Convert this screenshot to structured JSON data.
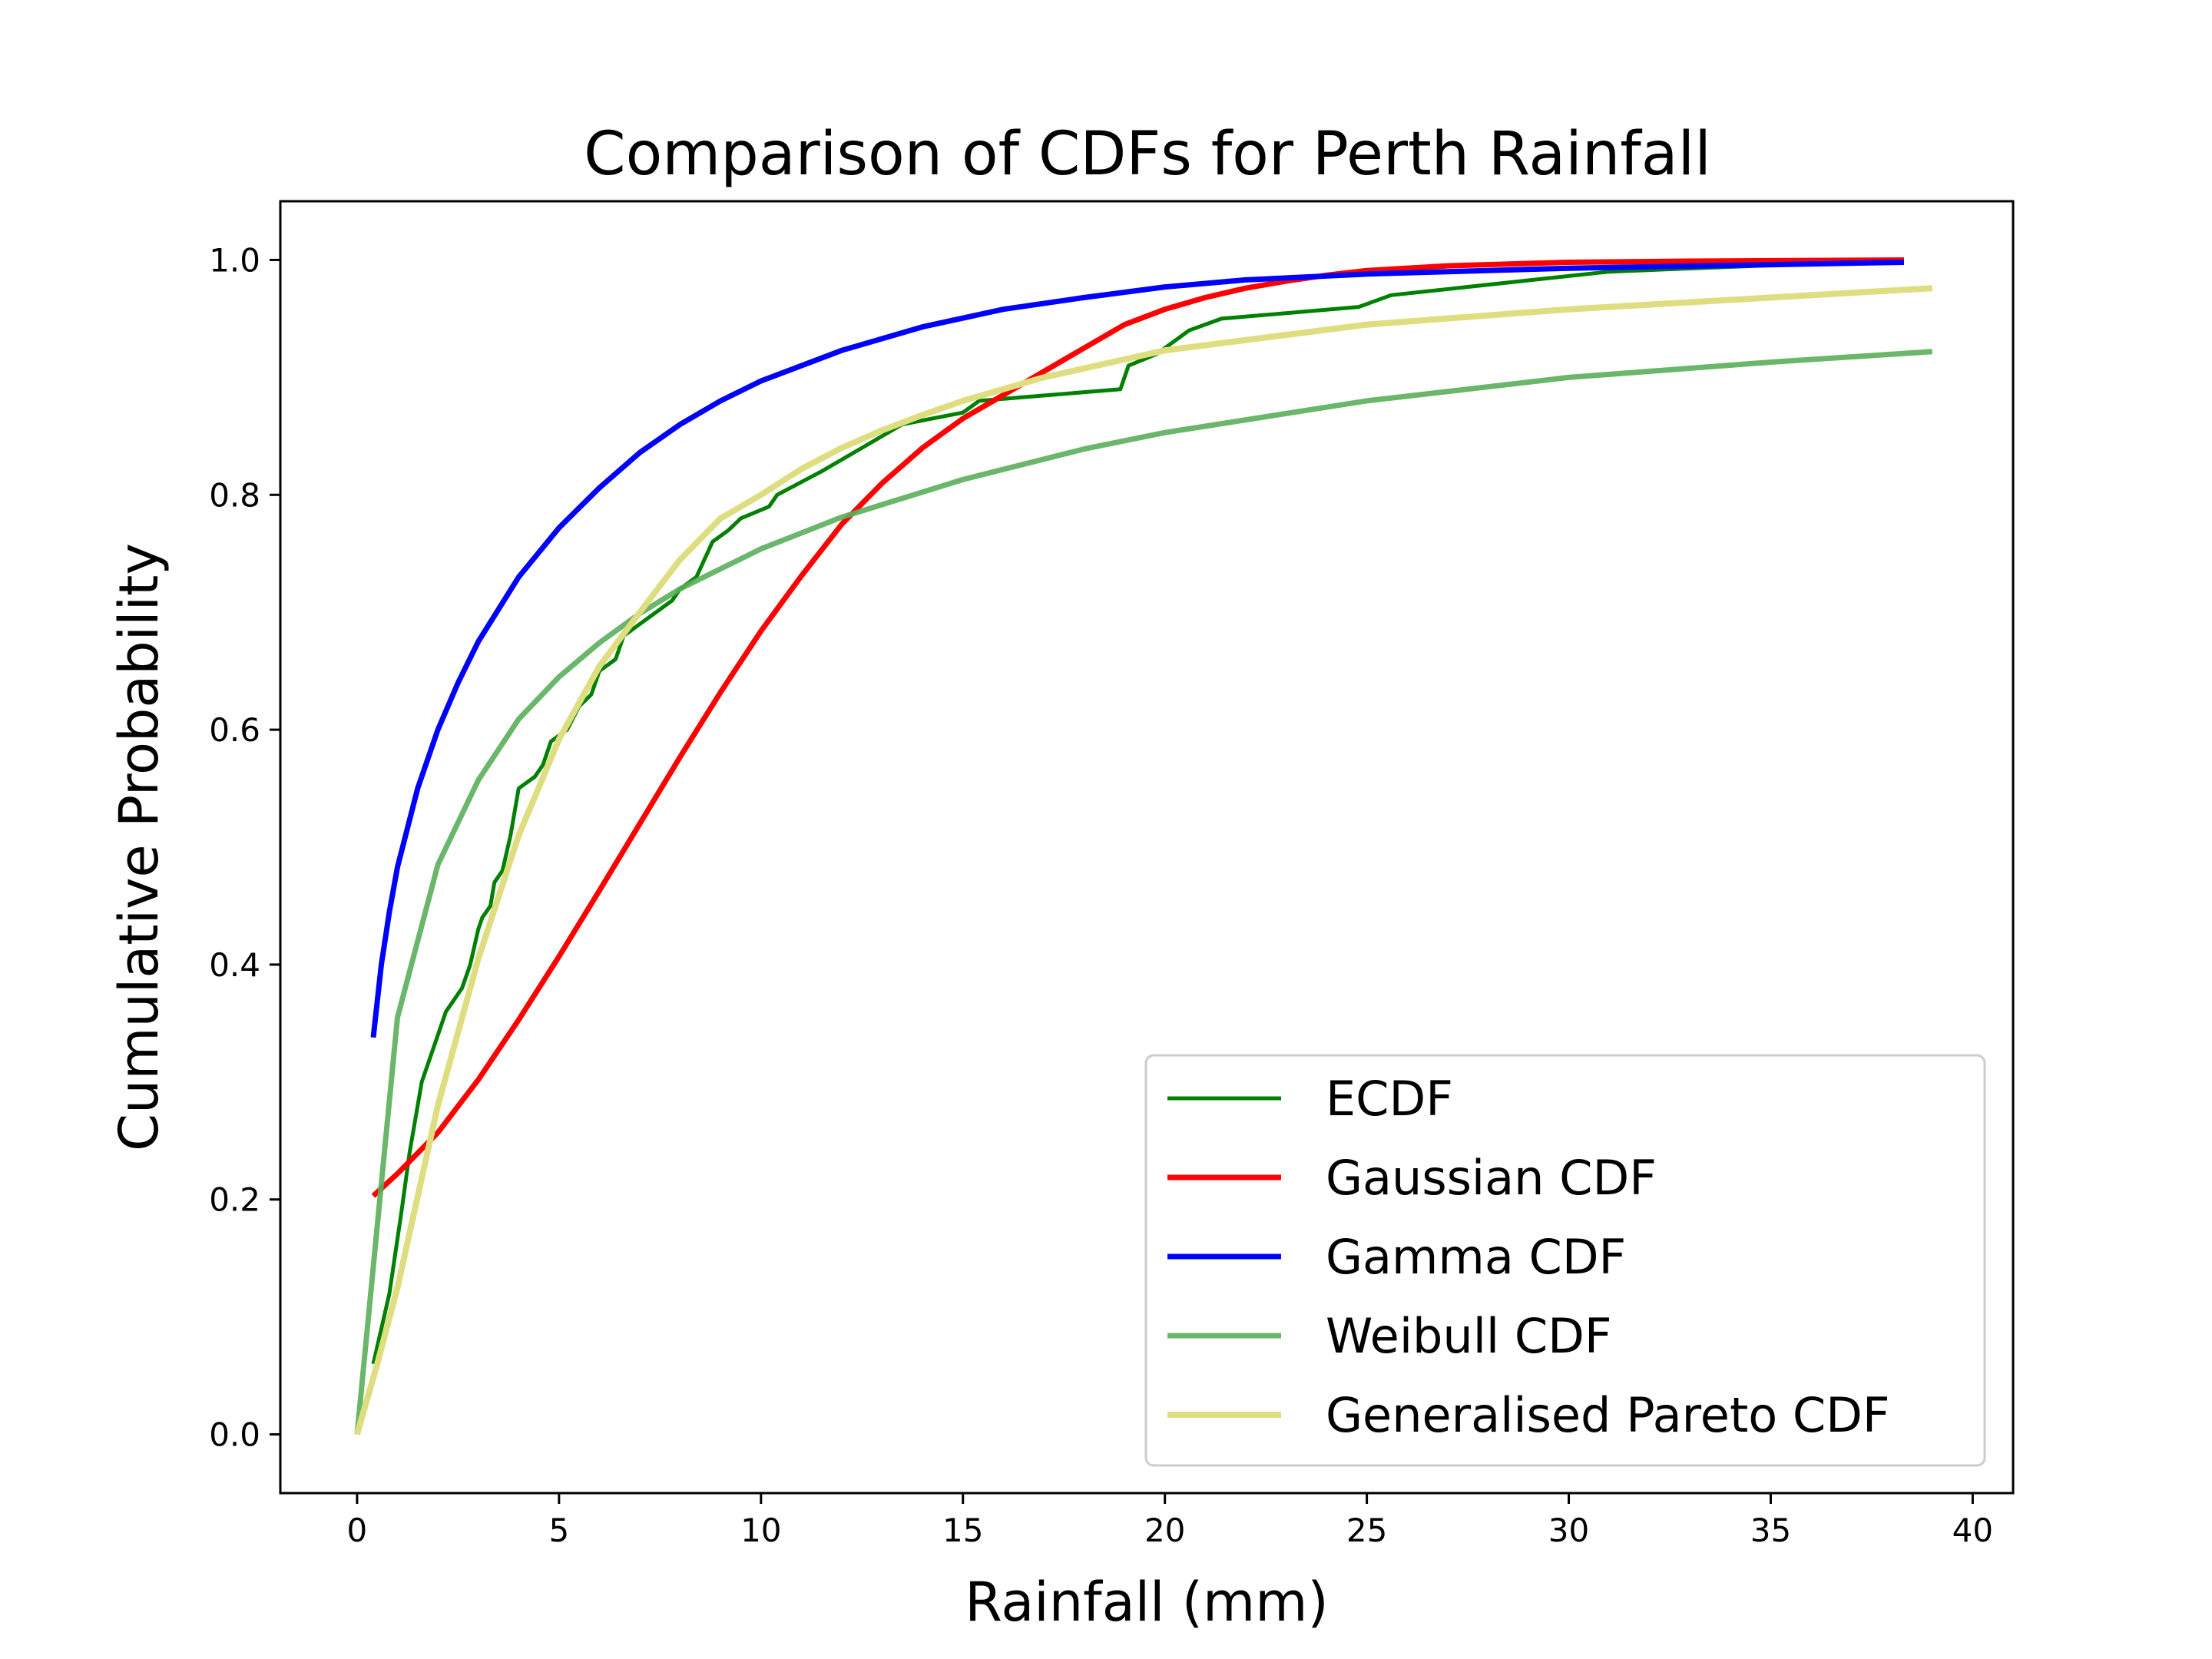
{
  "chart_data": {
    "type": "line",
    "title": "Comparison of CDFs for Perth Rainfall",
    "xlabel": "Rainfall (mm)",
    "ylabel": "Cumulative Probability",
    "xlim": [
      -1.9,
      41.0
    ],
    "ylim": [
      -0.05,
      1.05
    ],
    "x_ticks": [
      0,
      5,
      10,
      15,
      20,
      25,
      30,
      35,
      40
    ],
    "y_ticks": [
      0.0,
      0.2,
      0.4,
      0.6,
      0.8,
      1.0
    ],
    "x_tick_labels": [
      "0",
      "5",
      "10",
      "15",
      "20",
      "25",
      "30",
      "35",
      "40"
    ],
    "y_tick_labels": [
      "0.0",
      "0.2",
      "0.4",
      "0.6",
      "0.8",
      "1.0"
    ],
    "grid": false,
    "legend_position": "lower-right",
    "series": [
      {
        "name": "ECDF",
        "color": "#008000",
        "width": 5,
        "opacity": 1,
        "points": [
          [
            0.4,
            0.06
          ],
          [
            0.8,
            0.12
          ],
          [
            1.1,
            0.19
          ],
          [
            1.3,
            0.24
          ],
          [
            1.6,
            0.3
          ],
          [
            1.8,
            0.32
          ],
          [
            2.0,
            0.34
          ],
          [
            2.2,
            0.36
          ],
          [
            2.6,
            0.38
          ],
          [
            2.8,
            0.4
          ],
          [
            3.0,
            0.43
          ],
          [
            3.1,
            0.44
          ],
          [
            3.3,
            0.45
          ],
          [
            3.4,
            0.47
          ],
          [
            3.6,
            0.48
          ],
          [
            3.8,
            0.51
          ],
          [
            4.0,
            0.55
          ],
          [
            4.4,
            0.56
          ],
          [
            4.6,
            0.57
          ],
          [
            4.8,
            0.59
          ],
          [
            5.2,
            0.6
          ],
          [
            5.5,
            0.62
          ],
          [
            5.8,
            0.63
          ],
          [
            6.0,
            0.65
          ],
          [
            6.4,
            0.66
          ],
          [
            6.6,
            0.68
          ],
          [
            7.0,
            0.69
          ],
          [
            7.4,
            0.7
          ],
          [
            7.8,
            0.71
          ],
          [
            8.0,
            0.72
          ],
          [
            8.4,
            0.73
          ],
          [
            8.8,
            0.76
          ],
          [
            9.2,
            0.77
          ],
          [
            9.5,
            0.78
          ],
          [
            10.2,
            0.79
          ],
          [
            10.4,
            0.8
          ],
          [
            11.5,
            0.82
          ],
          [
            12.5,
            0.84
          ],
          [
            13.5,
            0.86
          ],
          [
            15.0,
            0.87
          ],
          [
            15.4,
            0.88
          ],
          [
            18.9,
            0.89
          ],
          [
            19.1,
            0.91
          ],
          [
            19.8,
            0.92
          ],
          [
            20.6,
            0.94
          ],
          [
            21.4,
            0.95
          ],
          [
            24.8,
            0.96
          ],
          [
            25.6,
            0.97
          ],
          [
            31.0,
            0.99
          ],
          [
            38.3,
            1.0
          ]
        ]
      },
      {
        "name": "Gaussian CDF",
        "color": "#ff0000",
        "width": 7,
        "opacity": 1,
        "points": [
          [
            0.4,
            0.203
          ],
          [
            1.0,
            0.222
          ],
          [
            2.0,
            0.257
          ],
          [
            3.0,
            0.302
          ],
          [
            4.0,
            0.353
          ],
          [
            5.0,
            0.407
          ],
          [
            6.0,
            0.463
          ],
          [
            7.0,
            0.52
          ],
          [
            8.0,
            0.577
          ],
          [
            9.0,
            0.632
          ],
          [
            10.0,
            0.684
          ],
          [
            11.0,
            0.731
          ],
          [
            12.0,
            0.775
          ],
          [
            13.0,
            0.81
          ],
          [
            14.0,
            0.84
          ],
          [
            15.0,
            0.865
          ],
          [
            16.0,
            0.885
          ],
          [
            17.0,
            0.905
          ],
          [
            18.0,
            0.925
          ],
          [
            19.0,
            0.945
          ],
          [
            20.0,
            0.958
          ],
          [
            21.0,
            0.968
          ],
          [
            22.0,
            0.976
          ],
          [
            23.0,
            0.982
          ],
          [
            24.0,
            0.987
          ],
          [
            25.0,
            0.991
          ],
          [
            27.0,
            0.995
          ],
          [
            30.0,
            0.998
          ],
          [
            33.0,
            0.999
          ],
          [
            38.3,
            1.0
          ]
        ]
      },
      {
        "name": "Gamma CDF",
        "color": "#0000ff",
        "width": 7,
        "opacity": 1,
        "points": [
          [
            0.4,
            0.338
          ],
          [
            0.6,
            0.4
          ],
          [
            0.8,
            0.445
          ],
          [
            1.0,
            0.483
          ],
          [
            1.5,
            0.55
          ],
          [
            2.0,
            0.6
          ],
          [
            2.5,
            0.64
          ],
          [
            3.0,
            0.675
          ],
          [
            4.0,
            0.73
          ],
          [
            5.0,
            0.772
          ],
          [
            6.0,
            0.806
          ],
          [
            7.0,
            0.836
          ],
          [
            8.0,
            0.86
          ],
          [
            9.0,
            0.88
          ],
          [
            10.0,
            0.897
          ],
          [
            12.0,
            0.923
          ],
          [
            14.0,
            0.943
          ],
          [
            16.0,
            0.958
          ],
          [
            18.0,
            0.968
          ],
          [
            20.0,
            0.977
          ],
          [
            22.0,
            0.983
          ],
          [
            25.0,
            0.988
          ],
          [
            30.0,
            0.993
          ],
          [
            35.0,
            0.996
          ],
          [
            38.3,
            0.998
          ]
        ]
      },
      {
        "name": "Weibull CDF",
        "color": "#5aae5a",
        "width": 7,
        "opacity": 0.9,
        "points": [
          [
            0.0,
            0.0
          ],
          [
            1.0,
            0.355
          ],
          [
            2.0,
            0.485
          ],
          [
            3.0,
            0.557
          ],
          [
            4.0,
            0.609
          ],
          [
            5.0,
            0.645
          ],
          [
            6.0,
            0.674
          ],
          [
            7.0,
            0.699
          ],
          [
            8.0,
            0.72
          ],
          [
            10.0,
            0.754
          ],
          [
            12.0,
            0.781
          ],
          [
            15.0,
            0.813
          ],
          [
            18.0,
            0.839
          ],
          [
            20.0,
            0.853
          ],
          [
            25.0,
            0.88
          ],
          [
            30.0,
            0.9
          ],
          [
            35.0,
            0.913
          ],
          [
            39.0,
            0.922
          ]
        ]
      },
      {
        "name": "Generalised Pareto CDF",
        "color": "#dede80",
        "width": 8,
        "opacity": 1,
        "points": [
          [
            0.0,
            0.0
          ],
          [
            0.5,
            0.06
          ],
          [
            1.0,
            0.125
          ],
          [
            2.0,
            0.28
          ],
          [
            3.0,
            0.405
          ],
          [
            4.0,
            0.51
          ],
          [
            5.0,
            0.592
          ],
          [
            6.0,
            0.654
          ],
          [
            7.0,
            0.7
          ],
          [
            8.0,
            0.745
          ],
          [
            9.0,
            0.78
          ],
          [
            10.0,
            0.8
          ],
          [
            11.0,
            0.822
          ],
          [
            12.0,
            0.84
          ],
          [
            13.0,
            0.855
          ],
          [
            14.0,
            0.868
          ],
          [
            15.0,
            0.88
          ],
          [
            17.0,
            0.9
          ],
          [
            20.0,
            0.923
          ],
          [
            25.0,
            0.945
          ],
          [
            30.0,
            0.958
          ],
          [
            35.0,
            0.968
          ],
          [
            39.0,
            0.976
          ]
        ]
      }
    ]
  }
}
